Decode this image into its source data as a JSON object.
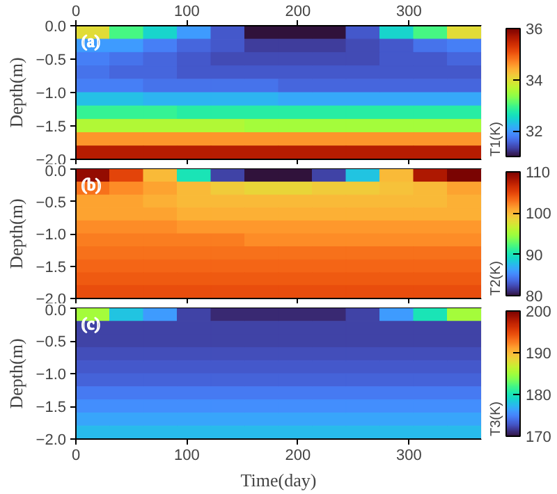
{
  "chart_data": [
    {
      "type": "heatmap",
      "ylabel": "Depth(m)",
      "clabel": "T1(K)",
      "annotations": [
        "(a)"
      ],
      "clim": [
        31,
        36
      ],
      "cticks": [
        32,
        34,
        36
      ],
      "xlim": [
        0,
        365
      ],
      "xticks": [
        0,
        100,
        200,
        300
      ],
      "ylim": [
        -2.0,
        0.0
      ],
      "yticks": [
        {
          "value": -2.0,
          "label": "−2.0"
        },
        {
          "value": -1.5,
          "label": "−1.5"
        },
        {
          "value": -1.0,
          "label": "−1.0"
        },
        {
          "value": -0.5,
          "label": "−0.5"
        },
        {
          "value": 0.0,
          "label": "0.0"
        }
      ],
      "cells": [
        [
          34,
          33,
          32.5,
          32,
          31.5,
          31,
          31,
          31,
          31.5,
          32.5,
          33,
          34
        ],
        [
          32,
          32,
          31.8,
          31.6,
          31.5,
          31.3,
          31.3,
          31.3,
          31.4,
          31.5,
          31.7,
          31.8
        ],
        [
          31.8,
          31.7,
          31.6,
          31.5,
          31.4,
          31.4,
          31.4,
          31.4,
          31.4,
          31.5,
          31.5,
          31.6
        ],
        [
          31.7,
          31.6,
          31.6,
          31.5,
          31.5,
          31.5,
          31.5,
          31.5,
          31.5,
          31.5,
          31.5,
          31.5
        ],
        [
          31.8,
          31.8,
          31.7,
          31.7,
          31.7,
          31.7,
          31.6,
          31.6,
          31.6,
          31.6,
          31.6,
          31.6
        ],
        [
          32.3,
          32.3,
          32.2,
          32.2,
          32.2,
          32.2,
          32.1,
          32.1,
          32.1,
          32.1,
          32.1,
          32.1
        ],
        [
          32.9,
          32.9,
          32.9,
          32.8,
          32.8,
          32.8,
          32.8,
          32.8,
          32.8,
          32.8,
          32.8,
          32.8
        ],
        [
          33.6,
          33.6,
          33.6,
          33.6,
          33.6,
          33.5,
          33.5,
          33.5,
          33.5,
          33.5,
          33.5,
          33.5
        ],
        [
          34.6,
          34.6,
          34.6,
          34.6,
          34.6,
          34.6,
          34.6,
          34.6,
          34.6,
          34.6,
          34.6,
          34.6
        ],
        [
          35.6,
          35.6,
          35.6,
          35.6,
          35.6,
          35.6,
          35.6,
          35.6,
          35.6,
          35.6,
          35.6,
          35.6
        ]
      ]
    },
    {
      "type": "heatmap",
      "ylabel": "Depth(m)",
      "clabel": "T2(K)",
      "annotations": [
        "(b)"
      ],
      "clim": [
        80,
        110
      ],
      "cticks": [
        80,
        90,
        100,
        110
      ],
      "tick_labels": "y",
      "xlim": [
        0,
        365
      ],
      "xticks": [
        0,
        100,
        200,
        300
      ],
      "ylim": [
        -2.0,
        0.0
      ],
      "yticks": [
        {
          "value": -2.0,
          "label": "−2.0"
        },
        {
          "value": -1.5,
          "label": "−1.5"
        },
        {
          "value": -1.0,
          "label": "−1.0"
        },
        {
          "value": -0.5,
          "label": "−0.5"
        },
        {
          "value": 0.0,
          "label": "0.0"
        }
      ],
      "cells": [
        [
          109,
          105,
          100,
          90,
          82,
          80,
          80,
          82,
          88,
          100,
          108,
          110
        ],
        [
          103,
          102,
          101,
          100,
          99,
          98.5,
          98.5,
          99,
          99,
          99.5,
          100,
          101
        ],
        [
          101,
          101,
          100.5,
          100,
          100,
          100,
          100,
          100,
          100,
          100,
          100,
          100.5
        ],
        [
          101,
          101,
          101,
          100.5,
          100.5,
          100.5,
          100.5,
          100.5,
          100.5,
          100.5,
          100.5,
          100.5
        ],
        [
          102,
          102,
          102,
          101.5,
          101.5,
          101.5,
          101.5,
          101.5,
          101.5,
          101.5,
          101.5,
          101.5
        ],
        [
          102.5,
          102.5,
          102.5,
          102.5,
          102.5,
          102,
          102,
          102,
          102,
          102,
          102,
          102
        ],
        [
          103,
          103,
          103,
          103,
          103,
          103,
          103,
          103,
          103,
          103,
          103,
          103
        ],
        [
          103.5,
          103.5,
          103.5,
          103.5,
          103.5,
          103.5,
          103.5,
          103.5,
          103.5,
          103.5,
          103.5,
          103.5
        ],
        [
          104,
          104,
          104,
          104,
          104,
          104,
          104,
          104,
          104,
          104,
          104,
          104
        ],
        [
          104.5,
          104.5,
          104.5,
          104.5,
          104.5,
          104.5,
          104.5,
          104.5,
          104.5,
          104.5,
          104.5,
          104.5
        ]
      ]
    },
    {
      "type": "heatmap",
      "xlabel": "Time(day)",
      "ylabel": "Depth(m)",
      "clabel": "T3(K)",
      "annotations": [
        "(c)"
      ],
      "clim": [
        170,
        200
      ],
      "cticks": [
        170,
        180,
        190,
        200
      ],
      "xlim": [
        0,
        365
      ],
      "xticks": [
        0,
        100,
        200,
        300
      ],
      "ylim": [
        -2.0,
        0.0
      ],
      "yticks": [
        {
          "value": -2.0,
          "label": "−2.0"
        },
        {
          "value": -1.5,
          "label": "−1.5"
        },
        {
          "value": -1.0,
          "label": "−1.0"
        },
        {
          "value": -0.5,
          "label": "−0.5"
        },
        {
          "value": 0.0,
          "label": "0.0"
        }
      ],
      "cells": [
        [
          185,
          178,
          176,
          172,
          171,
          171,
          171,
          171,
          172,
          176,
          180,
          185
        ],
        [
          172,
          172,
          172,
          172,
          172,
          172,
          172,
          172,
          172,
          172,
          172,
          172
        ],
        [
          172,
          172,
          172,
          172,
          172,
          172,
          172,
          172,
          172,
          172,
          172,
          172
        ],
        [
          172.5,
          172.5,
          172.5,
          172.5,
          172.5,
          172.5,
          172.5,
          172.5,
          172.5,
          172.5,
          172.5,
          172.5
        ],
        [
          173,
          173,
          173,
          173,
          173,
          173,
          173,
          173,
          173,
          173,
          173,
          173
        ],
        [
          173.5,
          173.5,
          173.5,
          173.5,
          173.5,
          173.5,
          173.5,
          173.5,
          173.5,
          173.5,
          173.5,
          173.5
        ],
        [
          174.5,
          174.5,
          174.5,
          174.5,
          174.5,
          174.5,
          174.5,
          174.5,
          174.5,
          174.5,
          174.5,
          174.5
        ],
        [
          175.5,
          175.5,
          175.5,
          175.5,
          175.5,
          175.5,
          175.5,
          175.5,
          175.5,
          175.5,
          175.5,
          175.5
        ],
        [
          176.5,
          176.5,
          176.5,
          176.5,
          176.5,
          176.5,
          176.5,
          176.5,
          176.5,
          176.5,
          176.5,
          176.5
        ],
        [
          177.5,
          177.5,
          177.5,
          177.5,
          177.5,
          177.5,
          177.5,
          177.5,
          177.5,
          177.5,
          177.5,
          177.5
        ]
      ]
    }
  ]
}
